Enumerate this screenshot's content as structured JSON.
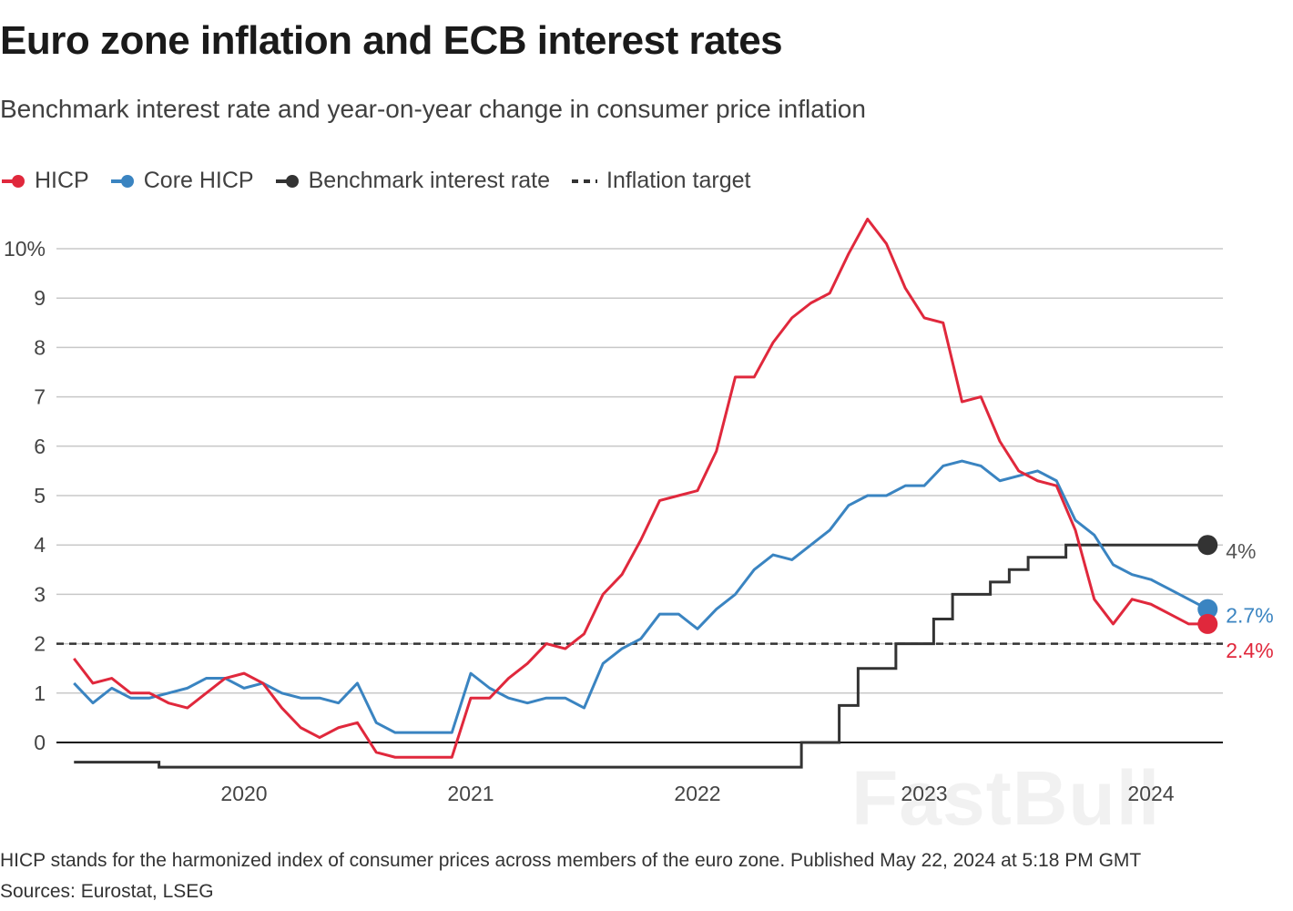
{
  "title": "Euro zone inflation and ECB interest rates",
  "subtitle": "Benchmark interest rate and year-on-year change in consumer price inflation",
  "legend": [
    {
      "label": "HICP",
      "color": "#e0283c",
      "style": "line-dot"
    },
    {
      "label": "Core HICP",
      "color": "#3a84c1",
      "style": "line-dot"
    },
    {
      "label": "Benchmark interest rate",
      "color": "#333333",
      "style": "line-dot"
    },
    {
      "label": "Inflation target",
      "color": "#333333",
      "style": "dashed"
    }
  ],
  "footer": {
    "note": "HICP stands for the harmonized index of consumer prices across members of the euro zone. Published May 22, 2024 at 5:18 PM GMT",
    "sources": "Sources: Eurostat, LSEG"
  },
  "watermark": "FastBull",
  "chart_data": {
    "type": "line",
    "title": "Euro zone inflation and ECB interest rates",
    "x_start": "2019-04",
    "x_end": "2024-04",
    "x_tick_labels": [
      "2020",
      "2021",
      "2022",
      "2023",
      "2024"
    ],
    "y_ticks": [
      0,
      1,
      2,
      3,
      4,
      5,
      6,
      7,
      8,
      9,
      10
    ],
    "y_tick_labels": [
      "0",
      "1",
      "2",
      "3",
      "4",
      "5",
      "6",
      "7",
      "8",
      "9",
      "10%"
    ],
    "ylim": [
      -0.5,
      10.6
    ],
    "grid": true,
    "legend_position": "top-left",
    "series": [
      {
        "name": "HICP",
        "color": "#e0283c",
        "end_label": "2.4%",
        "start": "2019-04",
        "values": [
          1.7,
          1.2,
          1.3,
          1.0,
          1.0,
          0.8,
          0.7,
          1.0,
          1.3,
          1.4,
          1.2,
          0.7,
          0.3,
          0.1,
          0.3,
          0.4,
          -0.2,
          -0.3,
          -0.3,
          -0.3,
          -0.3,
          0.9,
          0.9,
          1.3,
          1.6,
          2.0,
          1.9,
          2.2,
          3.0,
          3.4,
          4.1,
          4.9,
          5.0,
          5.1,
          5.9,
          7.4,
          7.4,
          8.1,
          8.6,
          8.9,
          9.1,
          9.9,
          10.6,
          10.1,
          9.2,
          8.6,
          8.5,
          6.9,
          7.0,
          6.1,
          5.5,
          5.3,
          5.2,
          4.3,
          2.9,
          2.4,
          2.9,
          2.8,
          2.6,
          2.4,
          2.4
        ]
      },
      {
        "name": "Core HICP",
        "color": "#3a84c1",
        "end_label": "2.7%",
        "start": "2019-04",
        "values": [
          1.2,
          0.8,
          1.1,
          0.9,
          0.9,
          1.0,
          1.1,
          1.3,
          1.3,
          1.1,
          1.2,
          1.0,
          0.9,
          0.9,
          0.8,
          1.2,
          0.4,
          0.2,
          0.2,
          0.2,
          0.2,
          1.4,
          1.1,
          0.9,
          0.8,
          0.9,
          0.9,
          0.7,
          1.6,
          1.9,
          2.1,
          2.6,
          2.6,
          2.3,
          2.7,
          3.0,
          3.5,
          3.8,
          3.7,
          4.0,
          4.3,
          4.8,
          5.0,
          5.0,
          5.2,
          5.2,
          5.6,
          5.7,
          5.6,
          5.3,
          5.4,
          5.5,
          5.3,
          4.5,
          4.2,
          3.6,
          3.4,
          3.3,
          3.1,
          2.9,
          2.7
        ]
      },
      {
        "name": "Benchmark interest rate",
        "color": "#333333",
        "end_label": "4%",
        "type": "step",
        "changes": [
          [
            "2019-04",
            -0.4
          ],
          [
            "2019-09",
            -0.5
          ],
          [
            "2022-07",
            0
          ],
          [
            "2022-09",
            0.75
          ],
          [
            "2022-10",
            1.5
          ],
          [
            "2022-12",
            2.0
          ],
          [
            "2023-02",
            2.5
          ],
          [
            "2023-03",
            3.0
          ],
          [
            "2023-05",
            3.25
          ],
          [
            "2023-06",
            3.5
          ],
          [
            "2023-07",
            3.75
          ],
          [
            "2023-09",
            4.0
          ]
        ],
        "end": "2024-04"
      },
      {
        "name": "Inflation target",
        "color": "#333333",
        "type": "hline",
        "value": 2
      }
    ]
  }
}
